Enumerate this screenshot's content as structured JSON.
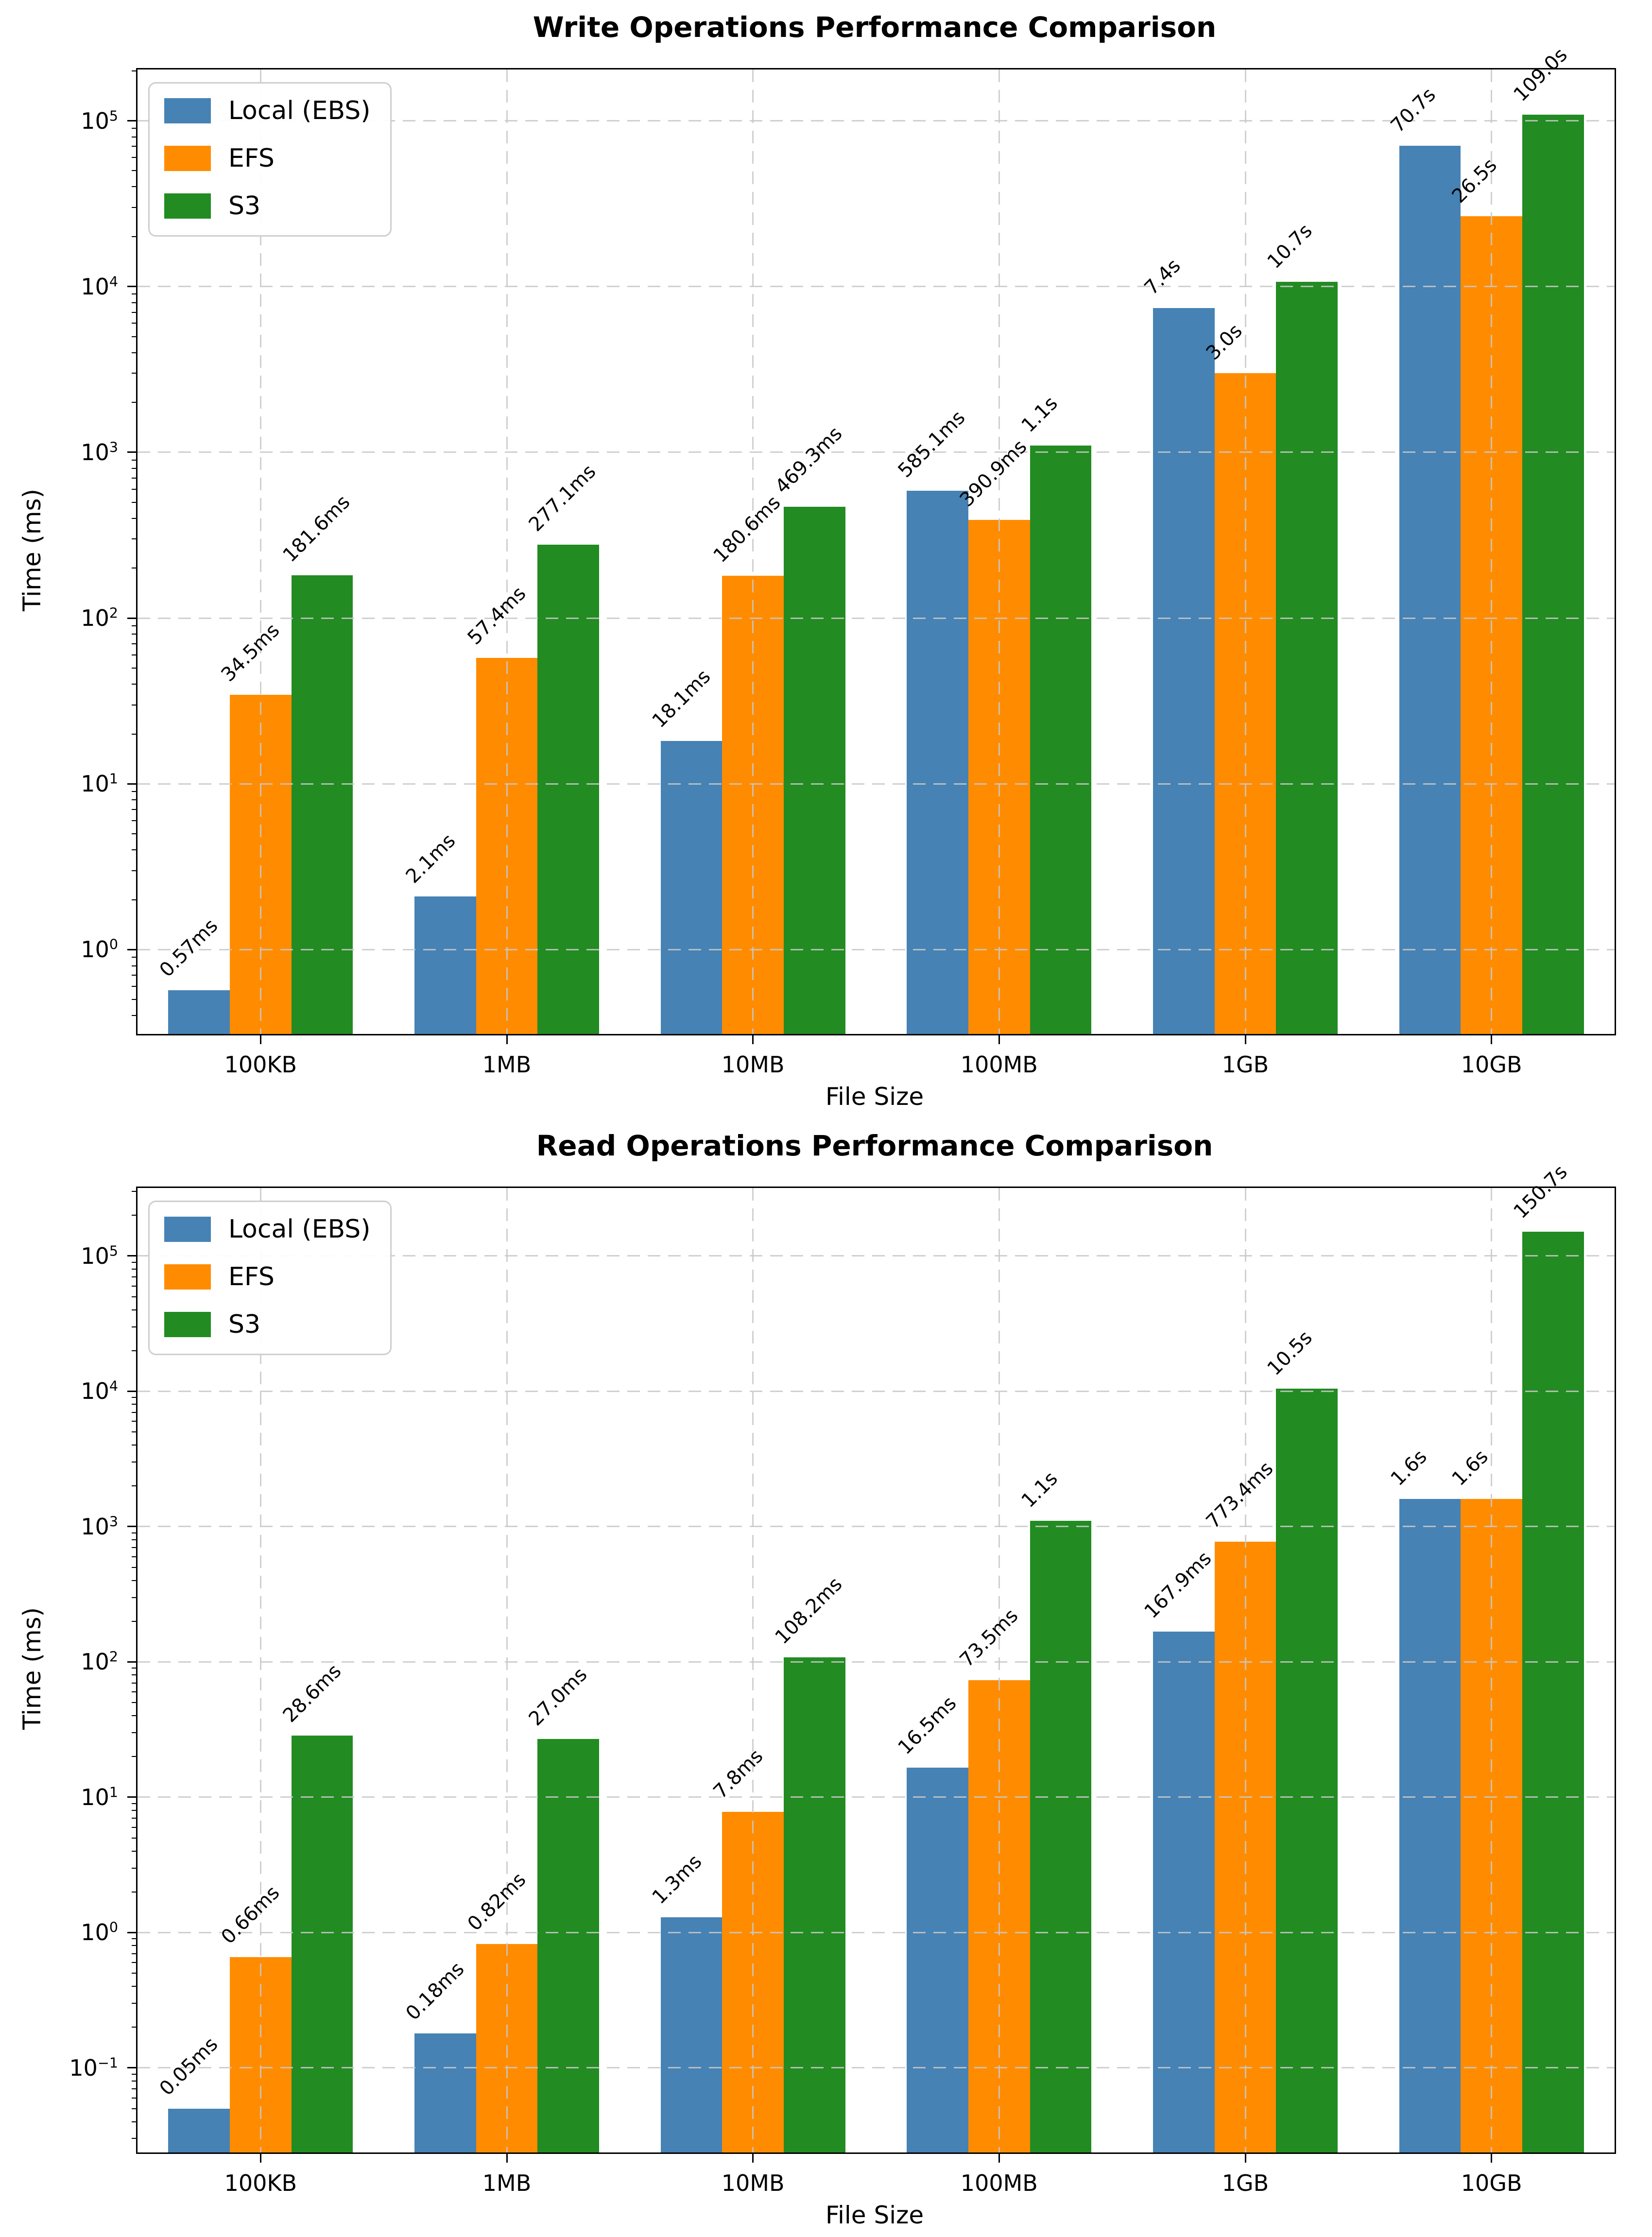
{
  "chart_data": [
    {
      "type": "bar",
      "title": "Write Operations Performance Comparison",
      "xlabel": "File Size",
      "ylabel": "Time (ms)",
      "categories": [
        "100KB",
        "1MB",
        "10MB",
        "100MB",
        "1GB",
        "10GB"
      ],
      "series": [
        {
          "name": "Local (EBS)",
          "color": "#4682B4",
          "values": [
            0.57,
            2.1,
            18.1,
            585.1,
            7400,
            70700
          ],
          "labels": [
            "0.57ms",
            "2.1ms",
            "18.1ms",
            "585.1ms",
            "7.4s",
            "70.7s"
          ]
        },
        {
          "name": "EFS",
          "color": "#FF8C00",
          "values": [
            34.5,
            57.4,
            180.6,
            390.9,
            3000,
            26500
          ],
          "labels": [
            "34.5ms",
            "57.4ms",
            "180.6ms",
            "390.9ms",
            "3.0s",
            "26.5s"
          ]
        },
        {
          "name": "S3",
          "color": "#228B22",
          "values": [
            181.6,
            277.1,
            469.3,
            1100,
            10700,
            109000
          ],
          "labels": [
            "181.6ms",
            "277.1ms",
            "469.3ms",
            "1.1s",
            "10.7s",
            "109.0s"
          ]
        }
      ],
      "ylim": [
        0.31,
        204000
      ],
      "ytick_exponents": [
        0,
        1,
        2,
        3,
        4,
        5
      ],
      "grid": true,
      "yscale": "log",
      "legend_position": "upper-left",
      "bar_width_fraction": 0.25
    },
    {
      "type": "bar",
      "title": "Read Operations Performance Comparison",
      "xlabel": "File Size",
      "ylabel": "Time (ms)",
      "categories": [
        "100KB",
        "1MB",
        "10MB",
        "100MB",
        "1GB",
        "10GB"
      ],
      "series": [
        {
          "name": "Local (EBS)",
          "color": "#4682B4",
          "values": [
            0.05,
            0.18,
            1.3,
            16.5,
            167.9,
            1600
          ],
          "labels": [
            "0.05ms",
            "0.18ms",
            "1.3ms",
            "16.5ms",
            "167.9ms",
            "1.6s"
          ]
        },
        {
          "name": "EFS",
          "color": "#FF8C00",
          "values": [
            0.66,
            0.82,
            7.8,
            73.5,
            773.4,
            1600
          ],
          "labels": [
            "0.66ms",
            "0.82ms",
            "7.8ms",
            "73.5ms",
            "773.4ms",
            "1.6s"
          ]
        },
        {
          "name": "S3",
          "color": "#228B22",
          "values": [
            28.6,
            27.0,
            108.2,
            1100,
            10500,
            150700
          ],
          "labels": [
            "28.6ms",
            "27.0ms",
            "108.2ms",
            "1.1s",
            "10.5s",
            "150.7s"
          ]
        }
      ],
      "ylim": [
        0.0237,
        318000
      ],
      "ytick_exponents": [
        -1,
        0,
        1,
        2,
        3,
        4,
        5
      ],
      "grid": true,
      "yscale": "log",
      "legend_position": "upper-left",
      "bar_width_fraction": 0.25
    }
  ]
}
